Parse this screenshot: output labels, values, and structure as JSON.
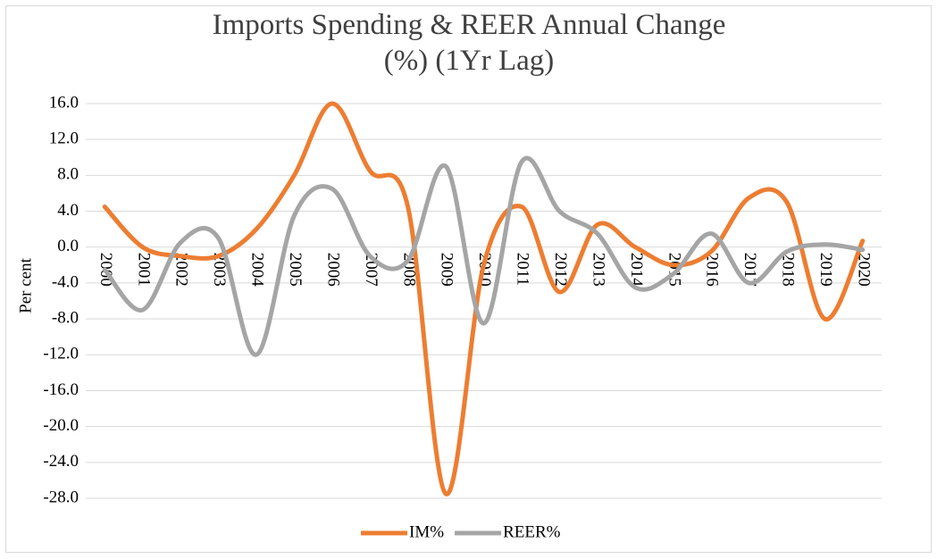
{
  "chart_data": {
    "type": "line",
    "title": "Imports Spending & REER Annual Change (%) (1Yr Lag)",
    "y_label": "Per cent",
    "categories": [
      "2000",
      "2001",
      "2002",
      "2003",
      "2004",
      "2005",
      "2006",
      "2007",
      "2008",
      "2009",
      "2010",
      "2011",
      "2012",
      "2013",
      "2014",
      "2015",
      "2016",
      "2017",
      "2018",
      "2019",
      "2020"
    ],
    "series": [
      {
        "name": "IM%",
        "color": "#ed7d31",
        "values": [
          4.5,
          0,
          -1,
          -1,
          2,
          8,
          16,
          8.5,
          4.5,
          -27.5,
          -2,
          4.5,
          -5,
          2.5,
          0,
          -2,
          -0.5,
          5.5,
          5,
          -8,
          0.7
        ]
      },
      {
        "name": "REER%",
        "color": "#a5a5a5",
        "values": [
          -2.5,
          -7,
          0.5,
          1,
          -12,
          3.5,
          6.5,
          -1,
          -1.5,
          9,
          -8.5,
          9.5,
          4,
          1.5,
          -4.5,
          -3,
          1.5,
          -4,
          -0.5,
          0.3,
          -0.3
        ]
      }
    ],
    "ylim": [
      -28,
      16
    ],
    "yticks": [
      {
        "value": 16,
        "label": "16.0"
      },
      {
        "value": 12,
        "label": "12.0"
      },
      {
        "value": 8,
        "label": "8.0"
      },
      {
        "value": 4,
        "label": "4.0"
      },
      {
        "value": 0,
        "label": "0.0"
      },
      {
        "value": -4,
        "label": "-4.0"
      },
      {
        "value": -8,
        "label": "-8.0"
      },
      {
        "value": -12,
        "label": "-12.0"
      },
      {
        "value": -16,
        "label": "-16.0"
      },
      {
        "value": -20,
        "label": "-20.0"
      },
      {
        "value": -24,
        "label": "-24.0"
      },
      {
        "value": -28,
        "label": "-28.0"
      }
    ],
    "grid": true,
    "legend": "bottom",
    "smooth": true
  }
}
